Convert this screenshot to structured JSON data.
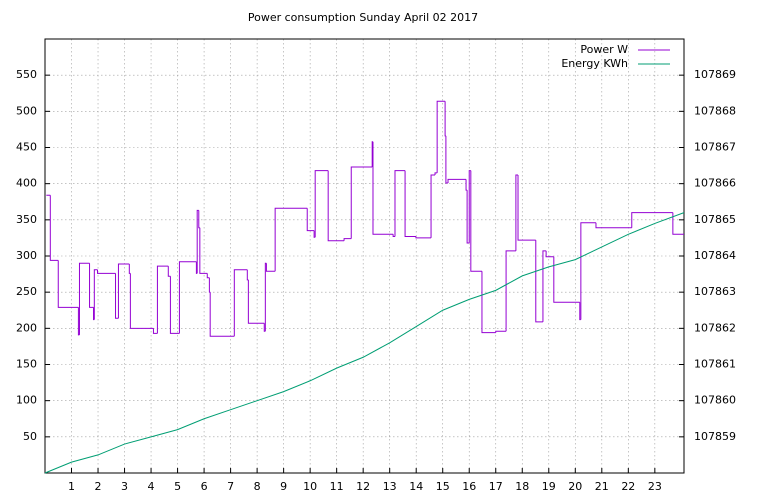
{
  "chart_data": {
    "type": "line",
    "title": "Power consumption Sunday April 02 2017",
    "xlim": [
      0,
      24.1
    ],
    "xticks": [
      1,
      2,
      3,
      4,
      5,
      6,
      7,
      8,
      9,
      10,
      11,
      12,
      13,
      14,
      15,
      16,
      17,
      18,
      19,
      20,
      21,
      22,
      23
    ],
    "ylim": [
      0,
      600
    ],
    "yticks": [
      50,
      100,
      150,
      200,
      250,
      300,
      350,
      400,
      450,
      500,
      550
    ],
    "y2lim": [
      107858,
      107870
    ],
    "y2ticks": [
      107859,
      107860,
      107861,
      107862,
      107863,
      107864,
      107865,
      107866,
      107867,
      107868,
      107869
    ],
    "grid": true,
    "legend": "top-right",
    "series": [
      {
        "name": "Power W",
        "color": "#9400d3",
        "step": "post",
        "x": [
          0.05,
          0.2,
          0.5,
          1.26,
          1.3,
          1.68,
          1.83,
          1.86,
          1.98,
          2.66,
          2.77,
          3.18,
          3.22,
          4.09,
          4.24,
          4.65,
          4.73,
          5.07,
          5.71,
          5.74,
          5.8,
          5.84,
          6.12,
          6.2,
          6.23,
          7.14,
          7.63,
          7.67,
          8.27,
          8.31,
          8.35,
          8.68,
          9.89,
          10.15,
          10.19,
          10.68,
          11.28,
          11.55,
          12.34,
          12.37,
          13.13,
          13.2,
          13.58,
          13.99,
          14.56,
          14.71,
          14.79,
          15.09,
          15.12,
          15.2,
          15.88,
          15.92,
          16.0,
          16.06,
          16.48,
          17.0,
          17.39,
          17.76,
          17.84,
          18.51,
          18.78,
          18.9,
          19.19,
          20.17,
          20.21,
          20.78,
          22.13,
          23.68
        ],
        "values": [
          384,
          294,
          229,
          191,
          290,
          229,
          212,
          281,
          276,
          214,
          289,
          276,
          200,
          193,
          286,
          272,
          193,
          292,
          276,
          363,
          339,
          276,
          270,
          250,
          189,
          281,
          267,
          207,
          196,
          290,
          279,
          366,
          335,
          326,
          418,
          321,
          324,
          423,
          458,
          330,
          327,
          418,
          327,
          325,
          412,
          415,
          514,
          466,
          401,
          406,
          391,
          318,
          418,
          279,
          194,
          196,
          307,
          412,
          322,
          209,
          307,
          299,
          236,
          212,
          346,
          339,
          360,
          330
        ]
      },
      {
        "name": "Energy KWh",
        "color": "#009e73",
        "axis": "y2",
        "x": [
          0,
          1,
          2,
          3,
          4,
          5,
          6,
          7,
          8,
          9,
          10,
          11,
          12,
          13,
          14,
          15,
          16,
          17,
          18,
          19,
          20,
          21,
          22,
          23,
          24.1
        ],
        "values": [
          107858,
          107858.3,
          107858.5,
          107858.8,
          107859,
          107859.2,
          107859.5,
          107859.75,
          107860,
          107860.25,
          107860.55,
          107860.9,
          107861.2,
          107861.6,
          107862.05,
          107862.5,
          107862.8,
          107863.05,
          107863.45,
          107863.7,
          107863.9,
          107864.25,
          107864.6,
          107864.9,
          107865.2
        ]
      }
    ]
  }
}
